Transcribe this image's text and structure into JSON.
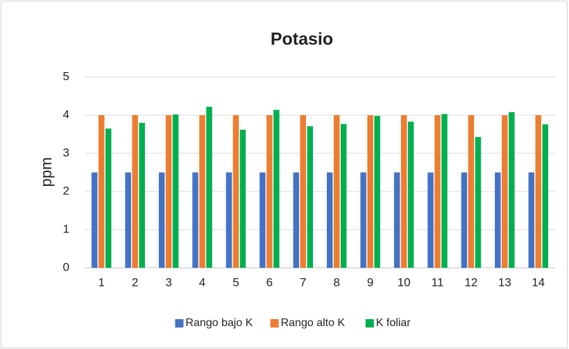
{
  "chart_data": {
    "type": "bar",
    "title": "Potasio",
    "y_label": "ppm",
    "categories": [
      "1",
      "2",
      "3",
      "4",
      "5",
      "6",
      "7",
      "8",
      "9",
      "10",
      "11",
      "12",
      "13",
      "14"
    ],
    "series": [
      {
        "name": "Rango bajo K",
        "color": "#4472c4",
        "values": [
          2.5,
          2.5,
          2.5,
          2.5,
          2.5,
          2.5,
          2.5,
          2.5,
          2.5,
          2.5,
          2.5,
          2.5,
          2.5,
          2.5
        ]
      },
      {
        "name": "Rango alto K",
        "color": "#ed7d31",
        "values": [
          4,
          4,
          4,
          4,
          4,
          4,
          4,
          4,
          4,
          4,
          4,
          4,
          4,
          4
        ]
      },
      {
        "name": "K foliar",
        "color": "#00b050",
        "values": [
          3.65,
          3.8,
          4.02,
          4.22,
          3.62,
          4.14,
          3.71,
          3.77,
          3.98,
          3.83,
          4.03,
          3.43,
          4.08,
          3.76
        ]
      }
    ],
    "ylim": [
      0,
      5
    ],
    "yticks": [
      0,
      1,
      2,
      3,
      4,
      5
    ],
    "grid": true,
    "legend": "bottom"
  }
}
